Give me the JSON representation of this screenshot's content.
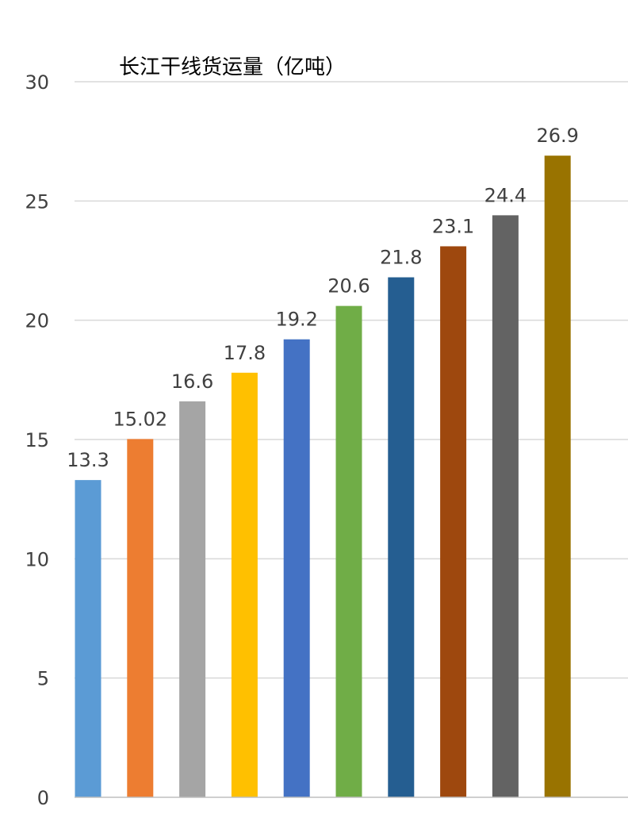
{
  "chart_data": {
    "type": "bar",
    "title": "长江干线货运量（亿吨）",
    "xlabel": "",
    "ylabel": "",
    "ylim": [
      0,
      30
    ],
    "yticks": [
      0,
      5,
      10,
      15,
      20,
      25,
      30
    ],
    "grid": true,
    "legend": "none",
    "values": [
      13.3,
      15.02,
      16.6,
      17.8,
      19.2,
      20.6,
      21.8,
      23.1,
      24.4,
      26.9
    ],
    "value_labels": [
      "13.3",
      "15.02",
      "16.6",
      "17.8",
      "19.2",
      "20.6",
      "21.8",
      "23.1",
      "24.4",
      "26.9"
    ],
    "colors": [
      "#5b9bd5",
      "#ed7d31",
      "#a5a5a5",
      "#ffc000",
      "#4472c4",
      "#70ad47",
      "#255e91",
      "#9e480e",
      "#636363",
      "#997300"
    ]
  }
}
